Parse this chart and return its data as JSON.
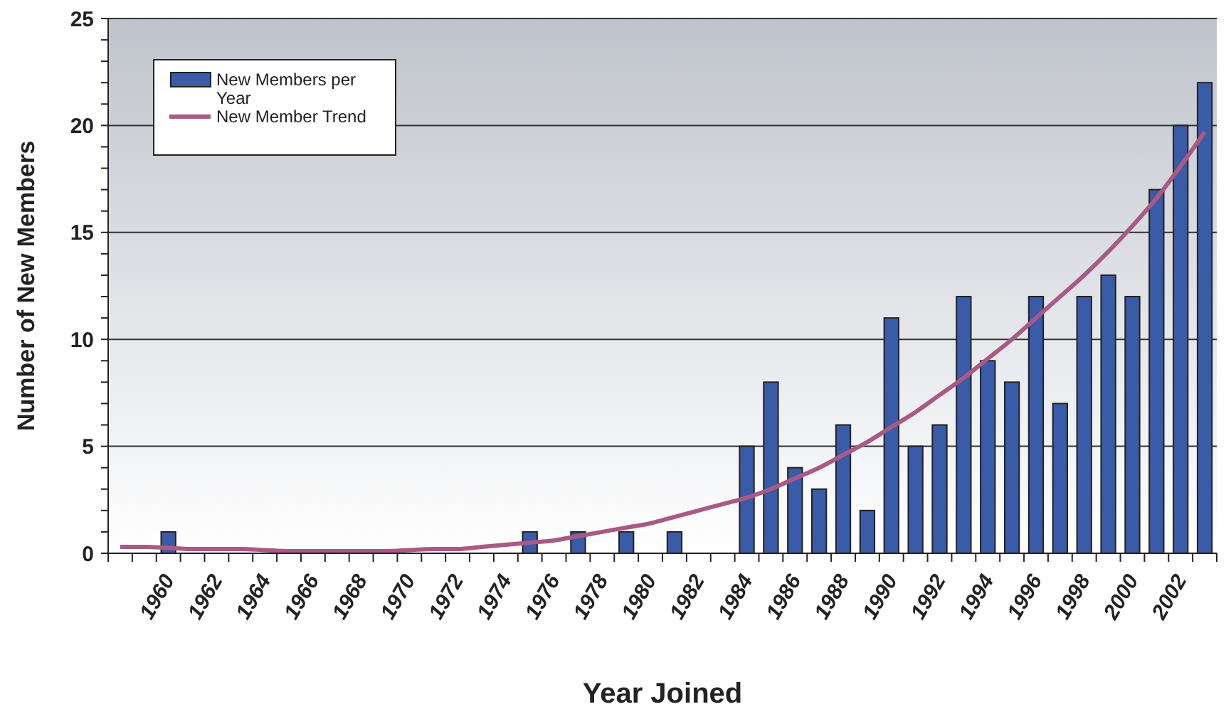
{
  "chart_data": {
    "type": "bar",
    "xlabel": "Year Joined",
    "ylabel": "Number of New Members",
    "categories": [
      null,
      null,
      "1960",
      null,
      "1962",
      null,
      "1964",
      null,
      "1966",
      null,
      "1968",
      null,
      "1970",
      null,
      "1972",
      null,
      "1974",
      null,
      "1976",
      null,
      "1978",
      null,
      "1980",
      null,
      "1982",
      null,
      "1984",
      null,
      "1986",
      null,
      "1988",
      null,
      "1990",
      null,
      "1992",
      null,
      "1994",
      null,
      "1996",
      null,
      "1998",
      null,
      "2000",
      null,
      "2002",
      null
    ],
    "series": [
      {
        "name": "New Members per Year",
        "color": "#3a5ba8",
        "values": [
          0,
          0,
          1,
          0,
          0,
          0,
          0,
          0,
          0,
          0,
          0,
          0,
          0,
          0,
          0,
          0,
          0,
          1,
          0,
          1,
          0,
          1,
          0,
          1,
          0,
          0,
          5,
          8,
          4,
          3,
          6,
          2,
          11,
          5,
          6,
          12,
          9,
          8,
          12,
          7,
          12,
          13,
          12,
          17,
          20,
          22
        ]
      },
      {
        "name": "New Member Trend",
        "type": "line",
        "color": "#a85a85",
        "values": [
          0.3,
          0.3,
          0.25,
          0.2,
          0.2,
          0.2,
          0.15,
          0.1,
          0.1,
          0.1,
          0.1,
          0.1,
          0.15,
          0.2,
          0.2,
          0.3,
          0.4,
          0.5,
          0.6,
          0.8,
          1.0,
          1.2,
          1.4,
          1.7,
          2.0,
          2.3,
          2.6,
          3.0,
          3.5,
          4.0,
          4.6,
          5.2,
          5.9,
          6.6,
          7.4,
          8.2,
          9.1,
          10.0,
          11.0,
          12.0,
          13.0,
          14.1,
          15.3,
          16.6,
          18.1,
          19.7
        ]
      }
    ],
    "ylim": [
      0,
      25
    ],
    "yticks": [
      0,
      {
        "value": 1,
        "label": null
      },
      {
        "value": 2,
        "label": null
      },
      {
        "value": 3,
        "label": null
      },
      {
        "value": 4,
        "label": null
      },
      5,
      {
        "value": 6,
        "label": null
      },
      {
        "value": 7,
        "label": null
      },
      {
        "value": 8,
        "label": null
      },
      {
        "value": 9,
        "label": null
      },
      10,
      {
        "value": 11,
        "label": null
      },
      {
        "value": 12,
        "label": null
      },
      {
        "value": 13,
        "label": null
      },
      {
        "value": 14,
        "label": null
      },
      15,
      {
        "value": 16,
        "label": null
      },
      {
        "value": 17,
        "label": null
      },
      {
        "value": 18,
        "label": null
      },
      {
        "value": 19,
        "label": null
      },
      20,
      {
        "value": 21,
        "label": null
      },
      {
        "value": 22,
        "label": null
      },
      {
        "value": 23,
        "label": null
      },
      {
        "value": 24,
        "label": null
      },
      25
    ],
    "grid": "y",
    "legend": "top left",
    "marker": "none",
    "line_style": "solid"
  }
}
